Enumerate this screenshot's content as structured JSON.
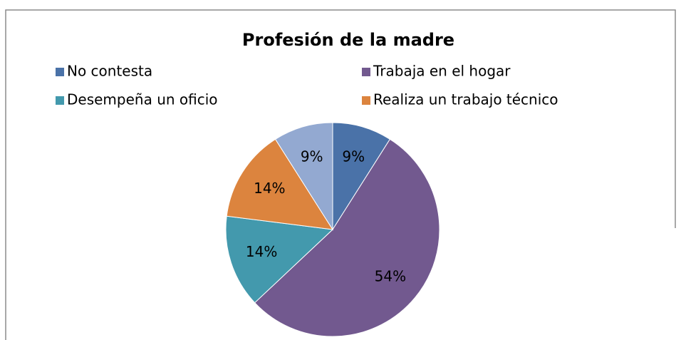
{
  "chart_data": {
    "type": "pie",
    "title": "Profesión de la madre",
    "categories": [
      "No contesta",
      "Trabaja en el hogar",
      "Desempeña un oficio",
      "Realiza un trabajo técnico",
      null
    ],
    "values": [
      9,
      54,
      14,
      14,
      9
    ],
    "value_labels": [
      "9%",
      "54%",
      "14%",
      "14%",
      "9%"
    ],
    "colors": [
      "#4a72a8",
      "#72598f",
      "#4399ad",
      "#dc843e",
      "#93a9d1"
    ],
    "legend": "top"
  }
}
